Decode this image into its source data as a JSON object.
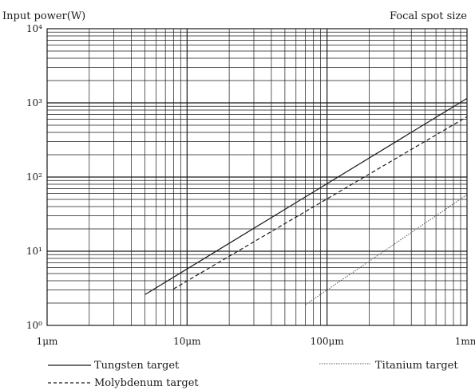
{
  "chart_data": {
    "type": "line",
    "title": "",
    "ylabel": "Input power(W)",
    "xlabel": "Focal spot size",
    "x_scale": "log",
    "y_scale": "log",
    "x_range_um": [
      1,
      1000
    ],
    "y_range_W": [
      1,
      10000
    ],
    "x_ticks": [
      {
        "value": 1,
        "label": "1μm"
      },
      {
        "value": 10,
        "label": "10μm"
      },
      {
        "value": 100,
        "label": "100μm"
      },
      {
        "value": 1000,
        "label": "1mm"
      }
    ],
    "y_ticks": [
      {
        "value": 1,
        "label": "10⁰"
      },
      {
        "value": 10,
        "label": "10¹"
      },
      {
        "value": 100,
        "label": "10²"
      },
      {
        "value": 1000,
        "label": "10³"
      },
      {
        "value": 10000,
        "label": "10⁴"
      }
    ],
    "grid": true,
    "series": [
      {
        "name": "Tungsten target",
        "style": "solid",
        "color": "#1a1a1a",
        "x": [
          5,
          1000
        ],
        "y": [
          2.6,
          1150
        ]
      },
      {
        "name": "Molybdenum target",
        "style": "dashed",
        "color": "#1a1a1a",
        "x": [
          8,
          1000
        ],
        "y": [
          3.1,
          650
        ]
      },
      {
        "name": "Titanium target",
        "style": "dotted",
        "color": "#555555",
        "x": [
          70,
          1000
        ],
        "y": [
          1.9,
          58
        ]
      }
    ],
    "legend_placement": "bottom"
  }
}
